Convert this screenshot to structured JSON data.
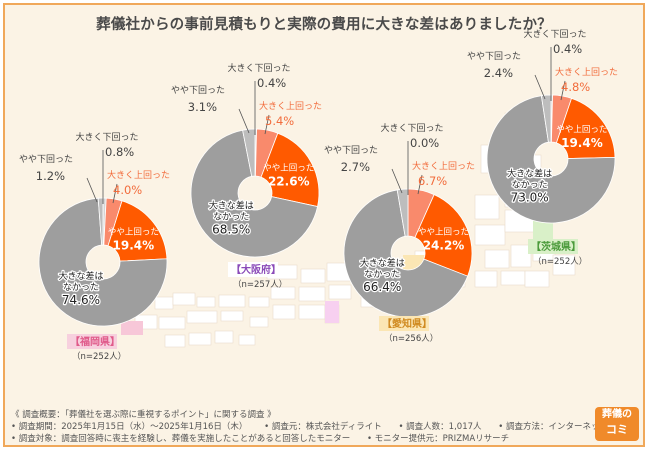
{
  "title": "葬儀社からの事前見積もりと実際の費用に大きな差はありましたか？",
  "colors": {
    "large_diff_none": "#9e9e9e",
    "slightly_above": "#ff5a00",
    "much_above": "#f98a6c",
    "slightly_below": "#bdbdbd",
    "much_below": "#d5d5d5",
    "accent_text": "#f26c3c",
    "label_gray": "#444444"
  },
  "chart_data": [
    {
      "type": "pie",
      "region": "【福岡県】",
      "n_label": "（n=252人）",
      "region_color": "#e05a8a",
      "region_bg": "#f7d0de",
      "series": [
        {
          "name": "大きく下回った",
          "value": 0.8
        },
        {
          "name": "大きく上回った",
          "value": 4.0
        },
        {
          "name": "やや上回った",
          "value": 19.4
        },
        {
          "name": "大きな差はなかった",
          "value": 74.6
        },
        {
          "name": "やや下回った",
          "value": 1.2
        }
      ]
    },
    {
      "type": "pie",
      "region": "【大阪府】",
      "n_label": "（n=257人）",
      "region_color": "#8a4ab8",
      "region_bg": "#ffffff",
      "series": [
        {
          "name": "大きく下回った",
          "value": 0.4
        },
        {
          "name": "大きく上回った",
          "value": 5.4
        },
        {
          "name": "やや上回った",
          "value": 22.6
        },
        {
          "name": "大きな差はなかった",
          "value": 68.5
        },
        {
          "name": "やや下回った",
          "value": 3.1
        }
      ]
    },
    {
      "type": "pie",
      "region": "【愛知県】",
      "n_label": "（n=256人）",
      "region_color": "#d08a20",
      "region_bg": "#fbe6b4",
      "series": [
        {
          "name": "大きく下回った",
          "value": 0.0
        },
        {
          "name": "大きく上回った",
          "value": 6.7
        },
        {
          "name": "やや上回った",
          "value": 24.2
        },
        {
          "name": "大きな差はなかった",
          "value": 66.4
        },
        {
          "name": "やや下回った",
          "value": 2.7
        }
      ]
    },
    {
      "type": "pie",
      "region": "【茨城県】",
      "n_label": "（n=252人）",
      "region_color": "#4a9a3a",
      "region_bg": "#d9f0c8",
      "series": [
        {
          "name": "大きく下回った",
          "value": 0.4
        },
        {
          "name": "大きく上回った",
          "value": 4.8
        },
        {
          "name": "やや上回った",
          "value": 19.4
        },
        {
          "name": "大きな差はなかった",
          "value": 73.0
        },
        {
          "name": "やや下回った",
          "value": 2.4
        }
      ]
    }
  ],
  "labels": {
    "much_below": "大きく下回った",
    "slightly_below": "やや下回った",
    "much_above": "大きく上回った",
    "slightly_above": "やや上回った",
    "none_line1": "大きな差は",
    "none_line2": "なかった"
  },
  "footer": {
    "line1": "《 調査概要：「葬儀社を選ぶ際に重視するポイント」に関する調査 》",
    "period": "• 調査期間：2025年1月15日（水）～2025年1月16日（木）",
    "org": "• 調査元：株式会社ディライト",
    "count": "• 調査人数：1,017人",
    "method": "• 調査方法：インターネット調査",
    "target": "• 調査対象：調査回答時に喪主を経験し、葬儀を実施したことがあると回答したモニター",
    "provider": "• モニター提供元：PRIZMAリサーチ"
  },
  "logo": {
    "line1": "葬儀の",
    "line2": "コミ"
  }
}
